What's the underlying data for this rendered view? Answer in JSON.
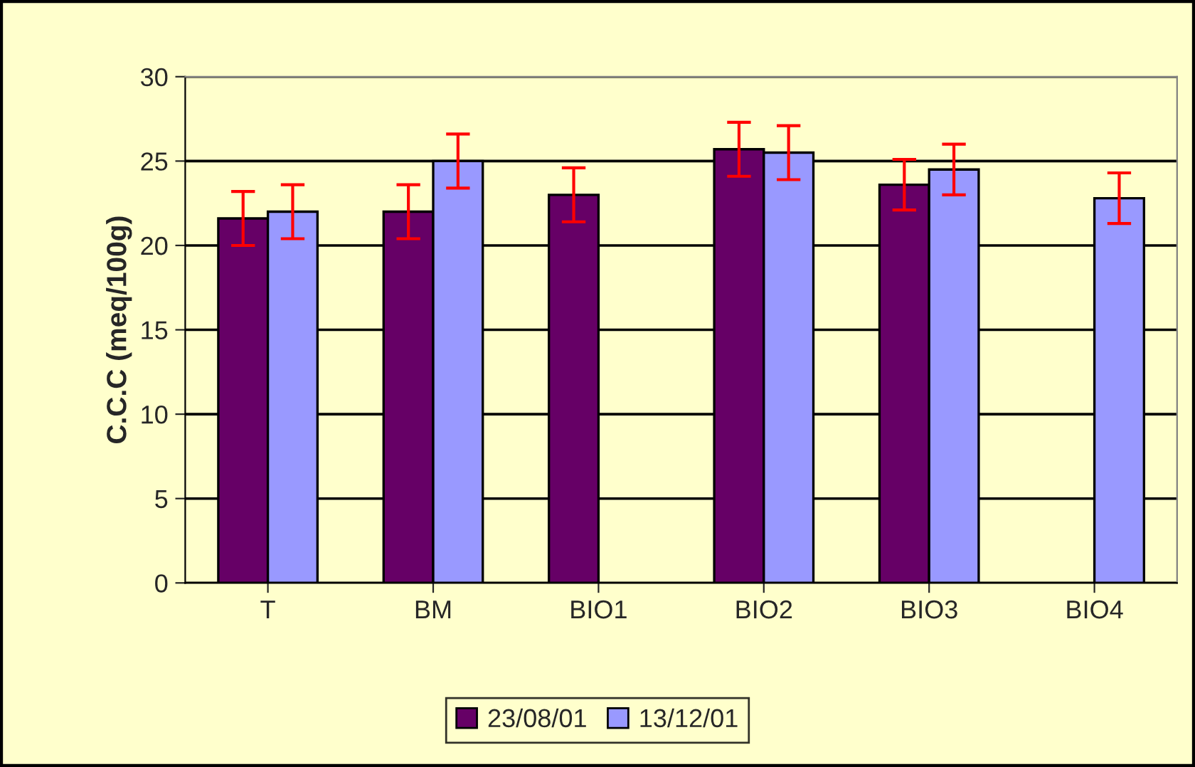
{
  "chart_data": {
    "type": "bar",
    "ylabel": "C.C.C (meq/100g)",
    "categories": [
      "T",
      "BM",
      "BIO1",
      "BIO2",
      "BIO3",
      "BIO4"
    ],
    "series": [
      {
        "name": "23/08/01",
        "color": "#660066",
        "values": [
          21.6,
          22.0,
          23.0,
          25.7,
          23.6,
          null
        ],
        "errors": [
          1.6,
          1.6,
          1.6,
          1.6,
          1.5,
          null
        ]
      },
      {
        "name": "13/12/01",
        "color": "#9999ff",
        "values": [
          22.0,
          25.0,
          null,
          25.5,
          24.5,
          22.8
        ],
        "errors": [
          1.6,
          1.6,
          null,
          1.6,
          1.5,
          1.5
        ]
      }
    ],
    "ylim": [
      0,
      30
    ],
    "yticks": [
      0,
      5,
      10,
      15,
      20,
      25,
      30
    ],
    "grid": "y",
    "legend": "bottom"
  }
}
